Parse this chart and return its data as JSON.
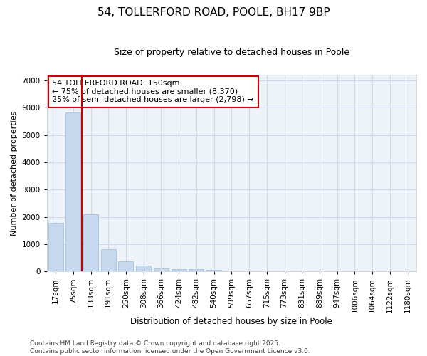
{
  "title_line1": "54, TOLLERFORD ROAD, POOLE, BH17 9BP",
  "title_line2": "Size of property relative to detached houses in Poole",
  "xlabel": "Distribution of detached houses by size in Poole",
  "ylabel": "Number of detached properties",
  "categories": [
    "17sqm",
    "75sqm",
    "133sqm",
    "191sqm",
    "250sqm",
    "308sqm",
    "366sqm",
    "424sqm",
    "482sqm",
    "540sqm",
    "599sqm",
    "657sqm",
    "715sqm",
    "773sqm",
    "831sqm",
    "889sqm",
    "947sqm",
    "1006sqm",
    "1064sqm",
    "1122sqm",
    "1180sqm"
  ],
  "values": [
    1780,
    5820,
    2090,
    820,
    370,
    210,
    120,
    90,
    80,
    55,
    0,
    0,
    0,
    0,
    0,
    0,
    0,
    0,
    0,
    0,
    0
  ],
  "bar_color": "#c5d8ee",
  "bar_edge_color": "#a8c4e0",
  "vline_x_index": 2,
  "vline_color": "#cc0000",
  "annotation_text_line1": "54 TOLLERFORD ROAD: 150sqm",
  "annotation_text_line2": "← 75% of detached houses are smaller (8,370)",
  "annotation_text_line3": "25% of semi-detached houses are larger (2,798) →",
  "annotation_box_color": "#cc0000",
  "bg_color": "#ffffff",
  "plot_bg_color": "#eef3fa",
  "grid_color": "#d0daea",
  "ylim": [
    0,
    7200
  ],
  "yticks": [
    0,
    1000,
    2000,
    3000,
    4000,
    5000,
    6000,
    7000
  ],
  "title1_fontsize": 11,
  "title2_fontsize": 9,
  "xlabel_fontsize": 8.5,
  "ylabel_fontsize": 8,
  "tick_fontsize": 7.5,
  "annot_fontsize": 8,
  "footer_line1": "Contains HM Land Registry data © Crown copyright and database right 2025.",
  "footer_line2": "Contains public sector information licensed under the Open Government Licence v3.0.",
  "footer_fontsize": 6.5
}
